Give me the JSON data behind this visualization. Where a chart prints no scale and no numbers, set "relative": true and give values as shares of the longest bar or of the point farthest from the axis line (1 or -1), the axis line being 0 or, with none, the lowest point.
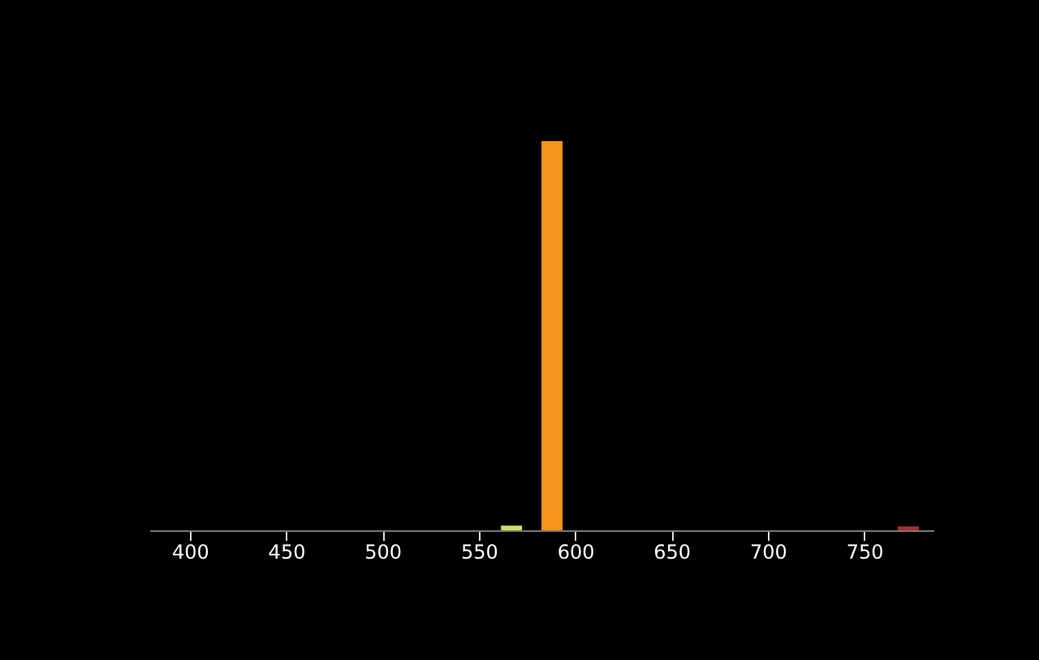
{
  "chart_data": {
    "type": "bar",
    "relative": true,
    "x": [
      567,
      588,
      773
    ],
    "values": [
      0.012,
      1,
      0.01
    ],
    "colors": [
      "#c8e06a",
      "#f7931e",
      "#a03030"
    ],
    "xlim": [
      379,
      786
    ],
    "xticks": [
      400,
      450,
      500,
      550,
      600,
      650,
      700,
      750
    ],
    "grid": false
  }
}
